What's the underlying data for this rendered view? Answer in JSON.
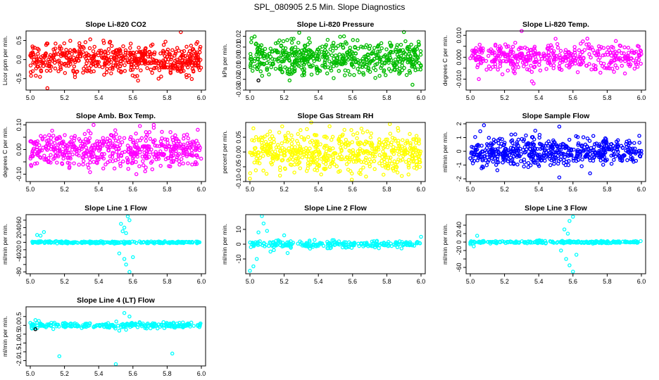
{
  "main_title": "SPL_080905  2.5 Min. Slope Diagnostics",
  "chart_data": [
    {
      "type": "scatter",
      "title": "Slope Li-820 CO2",
      "ylabel": "Licor ppm per min.",
      "xlim": [
        5.0,
        6.0
      ],
      "ylim": [
        -0.8,
        0.75
      ],
      "x_ticks": [
        "5.0",
        "5.2",
        "5.4",
        "5.6",
        "5.8",
        "6.0"
      ],
      "y_ticks": [
        -0.5,
        0.0,
        0.5
      ],
      "y_tick_labels": [
        "-0.5",
        "0.0",
        "0.5"
      ],
      "series": [
        {
          "color": "#ff0000",
          "n": 560,
          "x_range": [
            5.0,
            6.0
          ],
          "spread": 0.2,
          "outliers": [
            [
              5.1,
              -0.75
            ],
            [
              5.88,
              0.72
            ],
            [
              5.63,
              -0.55
            ]
          ]
        },
        {
          "color": "#000000",
          "n": 60,
          "x_range": [
            5.0,
            6.0
          ],
          "spread": 0.12,
          "outliers": []
        }
      ]
    },
    {
      "type": "scatter",
      "title": "Slope Li-820 Pressure",
      "ylabel": "kPa per min.",
      "xlim": [
        5.0,
        6.0
      ],
      "ylim": [
        -0.03,
        0.025
      ],
      "x_ticks": [
        "5.0",
        "5.2",
        "5.4",
        "5.6",
        "5.8",
        "6.0"
      ],
      "y_ticks": [
        -0.03,
        -0.02,
        -0.01,
        0.0,
        0.01,
        0.02
      ],
      "y_tick_labels": [
        "-0.03",
        "-0.02",
        "-0.01",
        "0.00",
        "0.01",
        "0.02"
      ],
      "series": [
        {
          "color": "#00bb00",
          "n": 560,
          "x_range": [
            5.0,
            6.0
          ],
          "spread": 0.008,
          "outliers": [
            [
              5.9,
              0.024
            ],
            [
              5.95,
              -0.025
            ],
            [
              5.55,
              0.02
            ]
          ]
        },
        {
          "color": "#000000",
          "n": 60,
          "x_range": [
            5.0,
            6.0
          ],
          "spread": 0.006,
          "outliers": [
            [
              5.05,
              -0.021
            ]
          ]
        }
      ]
    },
    {
      "type": "scatter",
      "title": "Slope Li-820 Temp.",
      "ylabel": "degrees C per min.",
      "xlim": [
        5.0,
        6.0
      ],
      "ylim": [
        -0.015,
        0.012
      ],
      "x_ticks": [
        "5.0",
        "5.2",
        "5.4",
        "5.6",
        "5.8",
        "6.0"
      ],
      "y_ticks": [
        -0.01,
        -0.005,
        0.0,
        0.005,
        0.01
      ],
      "y_tick_labels": [
        "-0.010",
        "",
        "0.000",
        "",
        "0.010"
      ],
      "series": [
        {
          "color": "#ff00ff",
          "n": 430,
          "x_range": [
            5.0,
            6.0
          ],
          "spread": 0.003,
          "outliers": [
            [
              5.3,
              0.012
            ],
            [
              5.37,
              -0.012
            ],
            [
              5.36,
              -0.011
            ],
            [
              5.05,
              -0.01
            ]
          ]
        },
        {
          "color": "#000000",
          "n": 55,
          "x_range": [
            5.0,
            6.0
          ],
          "spread": 0.002,
          "outliers": []
        }
      ]
    },
    {
      "type": "scatter",
      "title": "Slope Amb. Box Temp.",
      "ylabel": "degrees C per min.",
      "xlim": [
        5.0,
        6.0
      ],
      "ylim": [
        -0.13,
        0.11
      ],
      "x_ticks": [
        "5.0",
        "5.2",
        "5.4",
        "5.6",
        "5.8",
        "6.0"
      ],
      "y_ticks": [
        -0.1,
        -0.05,
        0.0,
        0.05,
        0.1
      ],
      "y_tick_labels": [
        "-0.10",
        "",
        "0.00",
        "",
        "0.10"
      ],
      "series": [
        {
          "color": "#ff00ff",
          "n": 540,
          "x_range": [
            5.0,
            6.0
          ],
          "spread": 0.035,
          "outliers": [
            [
              5.37,
              0.1
            ],
            [
              5.62,
              -0.1
            ]
          ]
        },
        {
          "color": "#000000",
          "n": 60,
          "x_range": [
            5.0,
            6.0
          ],
          "spread": 0.025,
          "outliers": []
        }
      ]
    },
    {
      "type": "scatter",
      "title": "Slope Gas Stream RH",
      "ylabel": "percent per min.",
      "xlim": [
        5.0,
        6.0
      ],
      "ylim": [
        -0.1,
        0.1
      ],
      "x_ticks": [
        "5.0",
        "5.2",
        "5.4",
        "5.6",
        "5.8",
        "6.0"
      ],
      "y_ticks": [
        -0.1,
        -0.05,
        0.0,
        0.05
      ],
      "y_tick_labels": [
        "-0.10",
        "-0.05",
        "0.00",
        "0.05"
      ],
      "series": [
        {
          "color": "#ffff00",
          "n": 560,
          "x_range": [
            5.0,
            6.0
          ],
          "spread": 0.035,
          "outliers": [
            [
              5.0,
              -0.09
            ],
            [
              5.02,
              0.08
            ]
          ]
        },
        {
          "color": "#000000",
          "n": 60,
          "x_range": [
            5.0,
            6.0
          ],
          "spread": 0.025,
          "outliers": []
        }
      ]
    },
    {
      "type": "scatter",
      "title": "Slope Sample Flow",
      "ylabel": "ml/min per min.",
      "xlim": [
        5.0,
        6.0
      ],
      "ylim": [
        -2.2,
        2.1
      ],
      "x_ticks": [
        "5.0",
        "5.2",
        "5.4",
        "5.6",
        "5.8",
        "6.0"
      ],
      "y_ticks": [
        -2,
        -1,
        0,
        1,
        2
      ],
      "y_tick_labels": [
        "-2",
        "-1",
        "0",
        "1",
        "2"
      ],
      "series": [
        {
          "color": "#0000ff",
          "n": 540,
          "x_range": [
            5.0,
            6.0
          ],
          "spread": 0.5,
          "outliers": [
            [
              5.08,
              1.9
            ],
            [
              5.52,
              1.8
            ],
            [
              5.52,
              -1.9
            ],
            [
              5.7,
              -1.6
            ],
            [
              5.38,
              1.5
            ]
          ]
        },
        {
          "color": "#000000",
          "n": 60,
          "x_range": [
            5.0,
            6.0
          ],
          "spread": 0.4,
          "outliers": []
        }
      ]
    },
    {
      "type": "scatter",
      "title": "Slope Line 1 Flow",
      "ylabel": "ml/min per min.",
      "xlim": [
        5.0,
        6.0
      ],
      "ylim": [
        -85,
        75
      ],
      "x_ticks": [
        "5.0",
        "5.2",
        "5.4",
        "5.6",
        "5.8",
        "6.0"
      ],
      "y_ticks": [
        -80,
        -60,
        -40,
        -20,
        0,
        20,
        40,
        60
      ],
      "y_tick_labels": [
        "-80",
        "",
        "-40",
        "-20",
        "0",
        "20",
        "40",
        "60"
      ],
      "series": [
        {
          "color": "#00ffff",
          "n": 240,
          "x_range": [
            5.0,
            6.0
          ],
          "spread": 1.5,
          "outliers": [
            [
              5.04,
              20
            ],
            [
              5.08,
              28
            ],
            [
              5.06,
              18
            ],
            [
              5.53,
              50
            ],
            [
              5.55,
              40
            ],
            [
              5.56,
              25
            ],
            [
              5.57,
              70
            ],
            [
              5.58,
              60
            ],
            [
              5.52,
              -30
            ],
            [
              5.55,
              -45
            ],
            [
              5.56,
              -60
            ],
            [
              5.58,
              -80
            ],
            [
              5.6,
              -40
            ],
            [
              5.54,
              30
            ]
          ]
        },
        {
          "color": "#000000",
          "n": 50,
          "x_range": [
            5.0,
            6.0
          ],
          "spread": 0.4,
          "outliers": []
        }
      ]
    },
    {
      "type": "scatter",
      "title": "Slope Line 2 Flow",
      "ylabel": "ml/min per min.",
      "xlim": [
        5.0,
        6.0
      ],
      "ylim": [
        -20,
        20
      ],
      "x_ticks": [
        "5.0",
        "5.2",
        "5.4",
        "5.6",
        "5.8",
        "6.0"
      ],
      "y_ticks": [
        -10,
        0,
        10
      ],
      "y_tick_labels": [
        "-10",
        "0",
        "10"
      ],
      "series": [
        {
          "color": "#00ffff",
          "n": 260,
          "x_range": [
            5.0,
            6.0
          ],
          "spread": 1.2,
          "outliers": [
            [
              5.0,
              -18
            ],
            [
              5.02,
              -15
            ],
            [
              5.04,
              -10
            ],
            [
              5.07,
              19
            ],
            [
              5.08,
              14
            ],
            [
              5.05,
              8
            ],
            [
              5.1,
              9
            ],
            [
              5.12,
              -5
            ],
            [
              5.14,
              -4
            ],
            [
              5.2,
              6
            ],
            [
              5.22,
              -6
            ],
            [
              6.0,
              5
            ]
          ]
        },
        {
          "color": "#000000",
          "n": 55,
          "x_range": [
            5.0,
            6.0
          ],
          "spread": 0.6,
          "outliers": []
        }
      ]
    },
    {
      "type": "scatter",
      "title": "Slope Line 3 Flow",
      "ylabel": "ml/min per min.",
      "xlim": [
        5.0,
        6.0
      ],
      "ylim": [
        -75,
        65
      ],
      "x_ticks": [
        "5.0",
        "5.2",
        "5.4",
        "5.6",
        "5.8",
        "6.0"
      ],
      "y_ticks": [
        -60,
        -40,
        -20,
        0,
        20,
        40
      ],
      "y_tick_labels": [
        "-60",
        "",
        "-20",
        "0",
        "20",
        "40"
      ],
      "series": [
        {
          "color": "#00ffff",
          "n": 240,
          "x_range": [
            5.0,
            6.0
          ],
          "spread": 1.5,
          "outliers": [
            [
              5.0,
              -5
            ],
            [
              5.02,
              -10
            ],
            [
              5.04,
              15
            ],
            [
              5.55,
              30
            ],
            [
              5.58,
              50
            ],
            [
              5.6,
              60
            ],
            [
              5.57,
              20
            ],
            [
              5.53,
              -20
            ],
            [
              5.56,
              -40
            ],
            [
              5.58,
              -55
            ],
            [
              5.6,
              -70
            ],
            [
              5.62,
              -30
            ]
          ]
        },
        {
          "color": "#000000",
          "n": 50,
          "x_range": [
            5.0,
            6.0
          ],
          "spread": 0.5,
          "outliers": []
        }
      ]
    },
    {
      "type": "scatter",
      "title": "Slope Line 4 (LT) Flow",
      "ylabel": "ml/min per min.",
      "xlim": [
        5.0,
        6.0
      ],
      "ylim": [
        -2.3,
        1.05
      ],
      "x_ticks": [
        "5.0",
        "5.2",
        "5.4",
        "5.6",
        "5.8",
        "6.0"
      ],
      "y_ticks": [
        -2.0,
        -1.5,
        -1.0,
        -0.5,
        0.0,
        0.5
      ],
      "y_tick_labels": [
        "-2.0",
        "-1.5",
        "-1.0",
        "-0.5",
        "0.0",
        "0.5"
      ],
      "series": [
        {
          "color": "#00ffff",
          "n": 260,
          "x_range": [
            5.0,
            6.0
          ],
          "spread": 0.08,
          "outliers": [
            [
              5.17,
              -1.75
            ],
            [
              5.5,
              -2.2
            ],
            [
              5.83,
              -1.6
            ],
            [
              5.55,
              0.7
            ],
            [
              5.58,
              0.5
            ],
            [
              5.52,
              -0.3
            ],
            [
              5.56,
              -0.25
            ],
            [
              5.03,
              0.3
            ],
            [
              5.05,
              0.25
            ]
          ]
        },
        {
          "color": "#000000",
          "n": 50,
          "x_range": [
            5.0,
            6.0
          ],
          "spread": 0.05,
          "outliers": [
            [
              5.03,
              -0.22
            ]
          ]
        }
      ]
    }
  ]
}
